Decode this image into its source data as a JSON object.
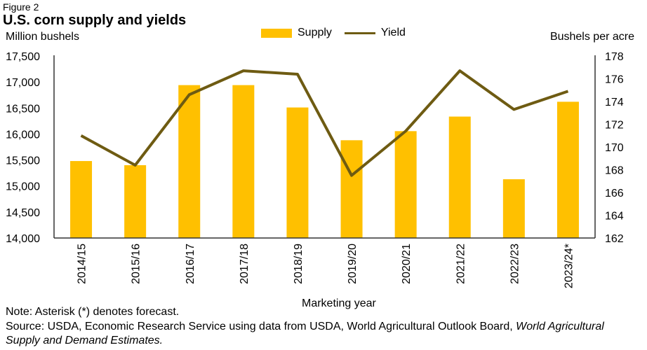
{
  "figure_label": "Figure 2",
  "notes": {
    "note": "Note: Asterisk (*) denotes forecast.",
    "source_plain": "Source: USDA, Economic Research Service using data from USDA, World Agricultural Outlook Board, ",
    "source_italic": "World Agricultural Supply and Demand Estimates."
  },
  "chart_data": {
    "type": "bar+line",
    "title": "U.S. corn supply and yields",
    "xlabel": "Marketing year",
    "ylabel": "Million bushels",
    "y2label": "Bushels per acre",
    "categories": [
      "2014/15",
      "2015/16",
      "2016/17",
      "2017/18",
      "2018/19",
      "2019/20",
      "2020/21",
      "2021/22",
      "2022/23",
      "2023/24*"
    ],
    "series": [
      {
        "name": "Supply",
        "type": "bar",
        "axis": "left",
        "color": "#FFC000",
        "values": [
          15480,
          15400,
          16940,
          16940,
          16510,
          15880,
          16055,
          16335,
          15130,
          16620
        ]
      },
      {
        "name": "Yield",
        "type": "line",
        "axis": "right",
        "color": "#6E5B12",
        "values": [
          171.0,
          168.4,
          174.6,
          176.7,
          176.4,
          167.5,
          171.4,
          176.7,
          173.3,
          174.9
        ]
      }
    ],
    "ylim": [
      14000,
      17500
    ],
    "y_ticks": [
      "14,000",
      "14,500",
      "15,000",
      "15,500",
      "16,000",
      "16,500",
      "17,000",
      "17,500"
    ],
    "y2lim": [
      162,
      178
    ],
    "y2_ticks": [
      "162",
      "164",
      "166",
      "168",
      "170",
      "172",
      "174",
      "176",
      "178"
    ],
    "grid": false,
    "legend": "top-center"
  }
}
